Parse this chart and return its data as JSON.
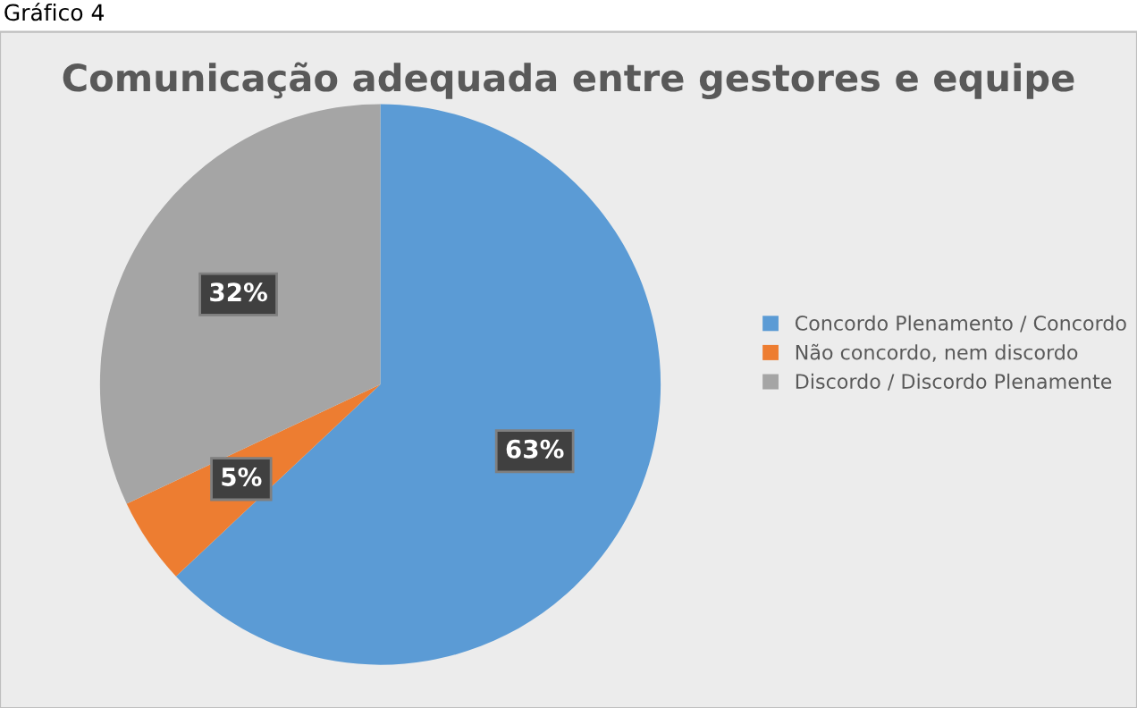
{
  "chart_data": {
    "type": "pie",
    "title": "Comunicação adequada entre gestores e equipe",
    "categories": [
      "Concordo Plenamento / Concordo",
      "Não concordo, nem discordo",
      "Discordo / Discordo Plenamente"
    ],
    "values": [
      63,
      5,
      32
    ],
    "colors": [
      "#5b9bd5",
      "#ed7d31",
      "#a5a5a5"
    ],
    "value_labels": [
      "63%",
      "5%",
      "32%"
    ],
    "legend": "right",
    "annotations": [
      "Gráfico 4"
    ]
  }
}
